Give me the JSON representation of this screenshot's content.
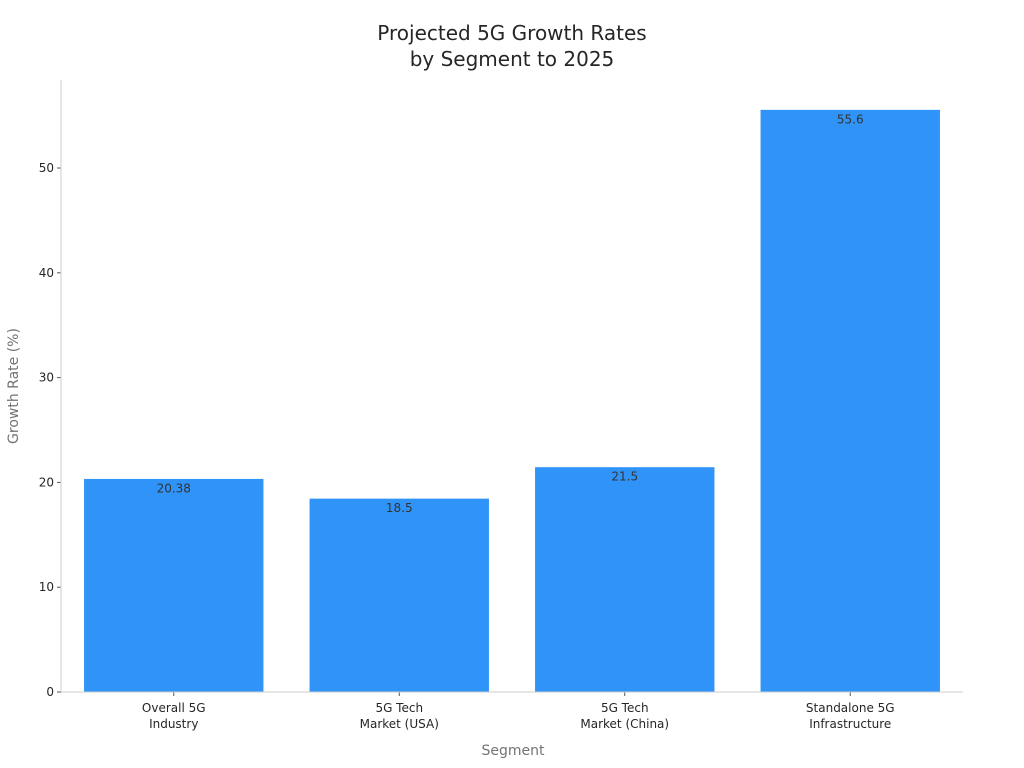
{
  "chart_data": {
    "type": "bar",
    "title_lines": [
      "Projected 5G Growth Rates",
      "by Segment to 2025"
    ],
    "xlabel": "Segment",
    "ylabel": "Growth Rate (%)",
    "categories": [
      [
        "Overall 5G",
        "Industry"
      ],
      [
        "5G Tech",
        "Market (USA)"
      ],
      [
        "5G Tech",
        "Market (China)"
      ],
      [
        "Standalone 5G",
        "Infrastructure"
      ]
    ],
    "values": [
      20.38,
      18.5,
      21.5,
      55.6
    ],
    "data_labels": [
      "20.38",
      "18.5",
      "21.5",
      "55.6"
    ],
    "yticks": [
      0,
      10,
      20,
      30,
      40,
      50
    ],
    "ylim": [
      0,
      58.4
    ],
    "grid": false,
    "legend": "none",
    "bar_color": "#2f93f8",
    "axis_color": "#cccccc"
  }
}
